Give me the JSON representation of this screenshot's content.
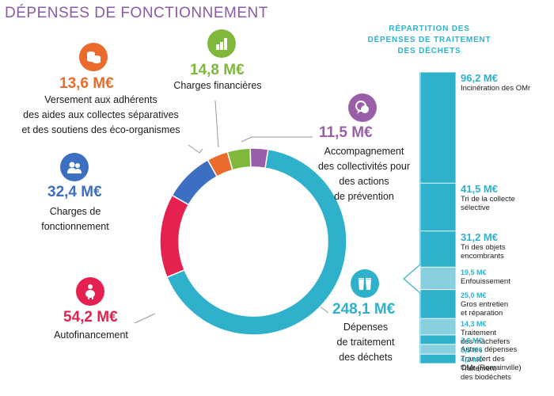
{
  "title": "DÉPENSES DE FONCTIONNEMENT",
  "colors": {
    "title": "#8b5aa6",
    "traitement": "#2fb1cc",
    "autofinancement": "#e5224f",
    "charges_fonctionnement": "#3c6ec1",
    "versement": "#ea6b2b",
    "charges_financieres": "#7fb83b",
    "accompagnement": "#9a5ea8"
  },
  "annotations": {
    "versement": {
      "amount": "13,6 M€",
      "lines": [
        "Versement aux adhérents",
        "des aides aux collectes séparatives",
        "et des soutiens des éco-organismes"
      ],
      "icon": "coins-icon"
    },
    "charges_financieres": {
      "amount": "14,8 M€",
      "lines": [
        "Charges financières"
      ],
      "icon": "bar-chart-icon"
    },
    "accompagnement": {
      "amount": "11,5 M€",
      "lines": [
        "Accompagnement",
        "des collectivités pour",
        "des actions",
        "de prévention"
      ],
      "icon": "speech-bubbles-icon"
    },
    "charges_fonctionnement": {
      "amount": "32,4 M€",
      "lines": [
        "Charges de",
        "fonctionnement"
      ],
      "icon": "people-icon"
    },
    "autofinancement": {
      "amount": "54,2 M€",
      "lines": [
        "Autofinancement"
      ],
      "icon": "piggy-bank-icon"
    },
    "traitement": {
      "amount": "248,1 M€",
      "lines": [
        "Dépenses",
        "de traitement",
        "des déchets"
      ],
      "icon": "waste-bins-icon"
    }
  },
  "breakdown": {
    "title_lines": [
      "RÉPARTITION DES",
      "DÉPENSES DE TRAITEMENT",
      "DES DÉCHETS"
    ]
  },
  "chart_data": [
    {
      "type": "pie",
      "variant": "donut",
      "title": "DÉPENSES DE FONCTIONNEMENT",
      "unit": "M€",
      "categories": [
        "Dépenses de traitement des déchets",
        "Autofinancement",
        "Charges de fonctionnement",
        "Versement aux adhérents des aides aux collectes séparatives et des soutiens des éco-organismes",
        "Charges financières",
        "Accompagnement des collectivités pour des actions de prévention"
      ],
      "values": [
        248.1,
        54.2,
        32.4,
        13.6,
        14.8,
        11.5
      ],
      "colors": [
        "#2fb1cc",
        "#e5224f",
        "#3c6ec1",
        "#ea6b2b",
        "#7fb83b",
        "#9a5ea8"
      ]
    },
    {
      "type": "bar",
      "variant": "stacked-single",
      "title": "RÉPARTITION DES DÉPENSES DE TRAITEMENT DES DÉCHETS",
      "unit": "M€",
      "categories": [
        "Incinération des OMr",
        "Tri de la collecte sélective",
        "Tri des objets encombrants",
        "Enfouissement",
        "Gros entretien et réparation",
        "Traitement des mâchefers",
        "Autres dépenses",
        "Transfert des OMr (Romainville)",
        "Traitement des biodéchets"
      ],
      "values": [
        96.2,
        41.5,
        31.2,
        19.5,
        25.0,
        14.3,
        7.6,
        8.5,
        4.2
      ],
      "value_labels": [
        "96,2 M€",
        "41,5 M€",
        "31,2 M€",
        "19,5 M€",
        "25,0 M€",
        "14,3 M€",
        "7,6 M€",
        "8,5 M€",
        "4,2 M€"
      ],
      "label_lines": [
        [
          "Incinération des OMr"
        ],
        [
          "Tri de la collecte",
          "sélective"
        ],
        [
          "Tri des objets",
          "encombrants"
        ],
        [
          "Enfouissement"
        ],
        [
          "Gros entretien",
          "et réparation"
        ],
        [
          "Traitement",
          "des mâchefers"
        ],
        [
          "Autres dépenses"
        ],
        [
          "Transfert des",
          "OMr (Romainville)"
        ],
        [
          "Traitement",
          "des biodéchets"
        ]
      ],
      "colors": [
        "#2fb1cc",
        "#2fb1cc",
        "#2fb1cc",
        "#88cfdf",
        "#2fb1cc",
        "#88cfdf",
        "#2fb1cc",
        "#88cfdf",
        "#2fb1cc"
      ]
    }
  ]
}
